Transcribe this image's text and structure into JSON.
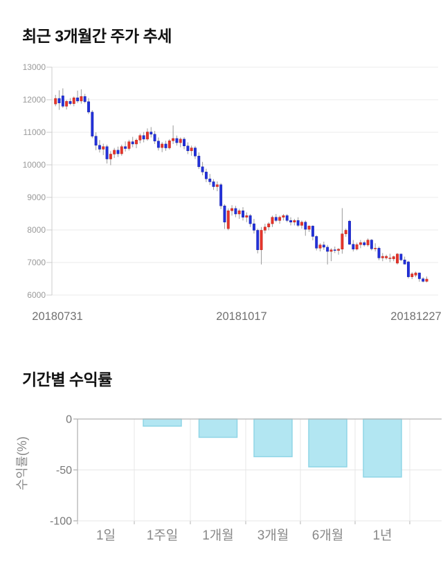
{
  "price_section": {
    "title": "최근 3개월간 주가 추세"
  },
  "returns_section": {
    "title": "기간별 수익률"
  },
  "chart_data": [
    {
      "type": "candlestick",
      "title": "최근 3개월간 주가 추세",
      "x_tick_labels": [
        "20180731",
        "20181017",
        "20181227"
      ],
      "y_ticks": [
        13000,
        12000,
        11000,
        10000,
        9000,
        8000,
        7000,
        6000
      ],
      "ylim": [
        6000,
        13000
      ],
      "grid": "horizontal",
      "legend": "none",
      "colors": {
        "up": "#e5352b",
        "up_border": "#c1251d",
        "down": "#2231da",
        "down_border": "#1822ae",
        "wick": "#999999",
        "grid": "#ebebeb",
        "axis": "#cccccc",
        "y_tick_label": "#999999",
        "x_tick_label": "#707070"
      },
      "candles_format": [
        "open",
        "high",
        "low",
        "close"
      ],
      "candles": [
        [
          11870,
          12150,
          11800,
          12040
        ],
        [
          12040,
          12290,
          11690,
          11900
        ],
        [
          12120,
          12350,
          11750,
          11800
        ],
        [
          11800,
          11990,
          11700,
          11950
        ],
        [
          11950,
          12050,
          11830,
          11880
        ],
        [
          11880,
          12100,
          11800,
          12060
        ],
        [
          12060,
          12280,
          11900,
          11960
        ],
        [
          11960,
          12320,
          11880,
          12100
        ],
        [
          12100,
          12180,
          11890,
          11940
        ],
        [
          11940,
          12050,
          11560,
          11620
        ],
        [
          11620,
          11680,
          10820,
          10880
        ],
        [
          10880,
          11000,
          10450,
          10600
        ],
        [
          10600,
          10760,
          10380,
          10480
        ],
        [
          10480,
          10650,
          10300,
          10560
        ],
        [
          10560,
          10620,
          10040,
          10180
        ],
        [
          10180,
          10420,
          9990,
          10330
        ],
        [
          10330,
          10520,
          10210,
          10450
        ],
        [
          10450,
          10560,
          10240,
          10340
        ],
        [
          10340,
          10620,
          10280,
          10560
        ],
        [
          10560,
          10720,
          10410,
          10500
        ],
        [
          10500,
          10770,
          10440,
          10710
        ],
        [
          10710,
          10860,
          10540,
          10640
        ],
        [
          10640,
          10810,
          10510,
          10760
        ],
        [
          10760,
          10960,
          10660,
          10900
        ],
        [
          10900,
          11010,
          10690,
          10790
        ],
        [
          10790,
          11120,
          10740,
          11010
        ],
        [
          11010,
          11160,
          10840,
          10940
        ],
        [
          10940,
          11040,
          10640,
          10730
        ],
        [
          10730,
          10840,
          10440,
          10530
        ],
        [
          10530,
          10700,
          10390,
          10640
        ],
        [
          10640,
          10740,
          10430,
          10520
        ],
        [
          10520,
          10790,
          10470,
          10740
        ],
        [
          10740,
          11210,
          10640,
          10810
        ],
        [
          10810,
          10900,
          10590,
          10680
        ],
        [
          10680,
          10840,
          10540,
          10790
        ],
        [
          10790,
          10850,
          10480,
          10580
        ],
        [
          10580,
          10690,
          10330,
          10430
        ],
        [
          10430,
          10590,
          10280,
          10520
        ],
        [
          10520,
          10580,
          10180,
          10270
        ],
        [
          10270,
          10380,
          9870,
          9940
        ],
        [
          9940,
          10090,
          9680,
          9780
        ],
        [
          9780,
          9880,
          9470,
          9570
        ],
        [
          9570,
          9720,
          9380,
          9480
        ],
        [
          9480,
          9560,
          9230,
          9330
        ],
        [
          9330,
          9490,
          9190,
          9390
        ],
        [
          9390,
          9440,
          8640,
          8740
        ],
        [
          8740,
          8790,
          8030,
          8240
        ],
        [
          8040,
          8660,
          7990,
          8590
        ],
        [
          8590,
          8760,
          8440,
          8660
        ],
        [
          8660,
          8740,
          8390,
          8490
        ],
        [
          8490,
          8650,
          8340,
          8590
        ],
        [
          8590,
          8700,
          8290,
          8390
        ],
        [
          8390,
          8540,
          8240,
          8440
        ],
        [
          8440,
          8490,
          8090,
          8190
        ],
        [
          8190,
          8340,
          7890,
          7990
        ],
        [
          7990,
          8040,
          7280,
          7390
        ],
        [
          7390,
          8090,
          6940,
          7990
        ],
        [
          7990,
          8190,
          7890,
          8090
        ],
        [
          8090,
          8240,
          7990,
          8190
        ],
        [
          8190,
          8440,
          8090,
          8390
        ],
        [
          8390,
          8490,
          8240,
          8290
        ],
        [
          8290,
          8440,
          8190,
          8390
        ],
        [
          8390,
          8490,
          8290,
          8440
        ],
        [
          8440,
          8490,
          8240,
          8290
        ],
        [
          8290,
          8390,
          8140,
          8240
        ],
        [
          8240,
          8340,
          8140,
          8290
        ],
        [
          8290,
          8390,
          8090,
          8140
        ],
        [
          8140,
          8290,
          8040,
          8240
        ],
        [
          8240,
          8290,
          7820,
          8020
        ],
        [
          8020,
          8140,
          7940,
          8120
        ],
        [
          8120,
          8140,
          7680,
          7800
        ],
        [
          7800,
          7840,
          7370,
          7440
        ],
        [
          7440,
          7590,
          7340,
          7540
        ],
        [
          7540,
          7640,
          7390,
          7470
        ],
        [
          7470,
          7540,
          6940,
          7340
        ],
        [
          7340,
          7440,
          7040,
          7390
        ],
        [
          7390,
          7490,
          7290,
          7370
        ],
        [
          7370,
          7440,
          7240,
          7410
        ],
        [
          7410,
          8670,
          7270,
          7880
        ],
        [
          7880,
          8040,
          7790,
          7990
        ],
        [
          8270,
          8310,
          7540,
          7560
        ],
        [
          7560,
          7690,
          7340,
          7410
        ],
        [
          7410,
          7610,
          7370,
          7550
        ],
        [
          7550,
          7690,
          7440,
          7610
        ],
        [
          7610,
          7670,
          7490,
          7540
        ],
        [
          7540,
          7740,
          7490,
          7690
        ],
        [
          7690,
          7720,
          7370,
          7420
        ],
        [
          7420,
          7590,
          7340,
          7440
        ],
        [
          7440,
          7490,
          7070,
          7140
        ],
        [
          7140,
          7290,
          7040,
          7190
        ],
        [
          7140,
          7240,
          7090,
          7190
        ],
        [
          7140,
          7270,
          7010,
          7140
        ],
        [
          7110,
          7210,
          7040,
          7180
        ],
        [
          6980,
          7290,
          6940,
          7260
        ],
        [
          7260,
          7270,
          7040,
          7080
        ],
        [
          7080,
          7180,
          6940,
          6950
        ],
        [
          7020,
          7050,
          6510,
          6560
        ],
        [
          6560,
          6700,
          6490,
          6650
        ],
        [
          6610,
          6720,
          6550,
          6680
        ],
        [
          6680,
          6690,
          6410,
          6500
        ],
        [
          6500,
          6550,
          6390,
          6420
        ],
        [
          6420,
          6570,
          6390,
          6490
        ]
      ]
    },
    {
      "type": "bar",
      "title": "기간별 수익률",
      "categories": [
        "1일",
        "1주일",
        "1개월",
        "3개월",
        "6개월",
        "1년"
      ],
      "values": [
        0,
        -7,
        -18,
        -37,
        -47,
        -57
      ],
      "ylabel": "수익률(%)",
      "y_ticks": [
        0,
        -50,
        -100
      ],
      "ylim": [
        -100,
        0
      ],
      "grid": "on",
      "legend": "none",
      "colors": {
        "bar_fill": "#b2e6f2",
        "bar_border": "#8fd5e6",
        "grid": "#e7e7e7",
        "axis": "#b3b3b3",
        "tick_label": "#777777",
        "category_label": "#888888",
        "axis_title": "#8a8a8a"
      }
    }
  ]
}
